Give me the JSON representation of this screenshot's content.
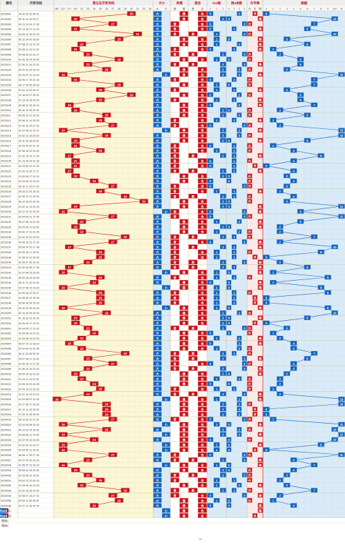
{
  "header": {
    "col_issue": "期号",
    "col_numbers": "开奖号码",
    "sec_pos5": "第五位开奖号码",
    "sec_size": "大小",
    "sec_parity": "奇偶",
    "sec_prime": "质合",
    "sec_mod3": "012路",
    "sec_mod4": "除4余数",
    "sec_trend": "升平降",
    "sec_amp": "振幅"
  },
  "subheaders": {
    "pos5": [
      "05+",
      "12+",
      "17+",
      "20+",
      "22",
      "23",
      "24",
      "25",
      "26",
      "27",
      "28",
      "29",
      "30",
      "31",
      "32",
      "33"
    ],
    "size": [
      "大",
      "小"
    ],
    "parity": [
      "奇",
      "偶"
    ],
    "prime": [
      "质",
      "合"
    ],
    "mod3": [
      "0",
      "1",
      "2"
    ],
    "mod4": [
      "0",
      "1",
      "2",
      "3"
    ],
    "trend": [
      "升",
      "平",
      "降"
    ],
    "amp": [
      "0",
      "1",
      "2",
      "3",
      "4",
      "5",
      "6",
      "7",
      "8",
      "9",
      "10+",
      "11"
    ]
  },
  "footer": {
    "forecast1": "预测1",
    "forecast2": "预测2",
    "page_marker": "7/8"
  },
  "watermark": "www.17500.cn",
  "colors": {
    "yellow_bg": "#fcf7d6",
    "blue_bg": "#d9ebf9",
    "pink_bg": "#fbeaea",
    "red_mark": "#c8121b",
    "blue_mark": "#1565c0",
    "red_line": "#c8121b",
    "blue_line": "#1565c0",
    "grid": "#e3d7ae"
  },
  "chart_data": {
    "type": "table",
    "title": "第五位开奖号码",
    "issues": [
      "2023091",
      "2023092",
      "2023093",
      "2023094",
      "2023095",
      "2023096",
      "2023097",
      "2023098",
      "2023099",
      "2023100",
      "2023101",
      "2023102",
      "2023103",
      "2023104",
      "2023105",
      "2023106",
      "2023107",
      "2023108",
      "2023109",
      "2023110",
      "2023111",
      "2023112",
      "2023113",
      "2023114",
      "2023115",
      "2023116",
      "2023117",
      "2023118",
      "2023119",
      "2023120",
      "2023121",
      "2023122",
      "2023123",
      "2023124",
      "2023125",
      "2023126",
      "2023127",
      "2023128",
      "2023129",
      "2023130",
      "2023131",
      "2023132",
      "2023133",
      "2023134",
      "2023135",
      "2023136",
      "2023137",
      "2023138",
      "2023139",
      "2023140",
      "2023141",
      "2023142",
      "2023143",
      "2023144",
      "2023145",
      "2023146",
      "2023147",
      "2023148",
      "2023149",
      "2023150",
      "2023151",
      "2023152",
      "2024001",
      "2024002",
      "2024003",
      "2024004",
      "2024005",
      "2024006",
      "2024007",
      "2024008",
      "2024009",
      "2024010",
      "2024011",
      "2024012",
      "2024013",
      "2024014",
      "2024015",
      "2024016",
      "2024017",
      "2024018",
      "2024019",
      "2024020",
      "2024021",
      "2024022",
      "2024023",
      "2024024",
      "2024025",
      "2024026",
      "2024027",
      "2024028",
      "2024029",
      "2024030",
      "2024031",
      "2024032",
      "2024033",
      "2024034",
      "2024035",
      "2024036",
      "2024037",
      "2024038"
    ],
    "numbers": [
      "16 20 23 29 30 31",
      "09 11 12 19 20 27",
      "04 13 14 24 27 30",
      "02 13 16 17 21 33",
      "04 05 13 18 31 33",
      "05 12 14 20 28 29",
      "07 08 12 13 22 33",
      "02 05 11 14 21 24",
      "04 08 09 10 23 27",
      "02 06 15 24 28 30",
      "07 09 11 19 23 29",
      "09 20 22 24 26 33",
      "02 04 07 12 14 19",
      "04 05 17 19 21 30",
      "08 17 19 26 28 33",
      "01 02 13 22 25 27",
      "10 18 20 27 30 31",
      "01 13 16 18 25 30",
      "03 08 10 15 18 24",
      "05 10 13 16 20 32",
      "06 09 10 21 26 33",
      "03 08 10 19 25 33",
      "01 02 13 15 27 32",
      "02 07 08 13 14 27",
      "01 02 14 15 26 33",
      "03 11 16 18 20 30",
      "02 03 16 20 21 32",
      "01 08 18 19 25 28",
      "01 02 13 14 17 33",
      "01 13 18 19 21 26",
      "02 03 09 13 21 33",
      "01 02 13 16 17 27",
      "01 02 06 17 20 24",
      "01 04 06 13 24 33",
      "06 10 17 20 27 30",
      "05 15 21 24 25 33",
      "01 06 12 17 29 33",
      "09 10 18 20 32 33",
      "01 02 12 13 20 23",
      "02 07 10 11 15 18",
      "03 04 09 21 27 30",
      "06 07 08 13 22 33",
      "02 03 05 11 20 28",
      "04 06 17 19 22 25",
      "01 02 19 22 29 30",
      "03 05 10 21 27 32",
      "05 08 14 15 17 28",
      "02 09 16 17 25 31",
      "01 08 10 12 25 30",
      "02 05 07 16 23 25",
      "01 02 04 05 17 28",
      "01 07 08 15 16 25",
      "05 09 18 23 25 28",
      "08 11 13 19 24 26",
      "02 07 08 14 16 29",
      "02 09 18 22 25 27",
      "01 06 08 14 25 28",
      "05 08 18 24 25 33",
      "02 10 13 15 16 18",
      "02 10 19 25 26 30",
      "01 15 16 19 20 32",
      "03 05 16 17 20 31",
      "02 04 05 17 23 32",
      "03 05 08 19 24 31",
      "01 03 06 19 22 33",
      "05 07 10 13 18 19",
      "02 04 06 13 22 30",
      "06 11 20 28 29 33",
      "04 07 08 17 23 31",
      "01 09 16 17 27 32",
      "01 06 10 19 23 26",
      "05 09 14 16 20 25",
      "01 04 11 14 22 30",
      "01 08 15 20 24 28",
      "04 09 15 22 25 32",
      "01 07 14 19 23 31",
      "01 03 05 07 10 15",
      "02 07 08 17 26 33",
      "02 12 14 15 26 32",
      "07 09 13 18 26 30",
      "08 14 20 22 27 31",
      "01 04 06 08 16 24",
      "04 14 23 24 26 30",
      "03 06 08 11 14 28",
      "01 07 09 13 24 30",
      "01 02 05 12 16 27",
      "03 04 06 11 16 32",
      "06 08 17 25 27 30",
      "02 07 09 14 23 30",
      "01 05 07 13 16 29",
      "05 08 15 18 20 30",
      "02 03 05 21 23 31",
      "03 09 12 20 25 33",
      "01 03 06 16 22 25",
      "01 02 16 26 29 30",
      "02 06 07 18 27 31",
      "03 05 11 26 28 32",
      "01 07 13 18 24 29"
    ],
    "pos5": [
      30,
      20,
      27,
      21,
      31,
      28,
      22,
      21,
      23,
      28,
      23,
      26,
      14,
      21,
      28,
      25,
      30,
      25,
      18,
      20,
      26,
      25,
      27,
      14,
      26,
      20,
      21,
      25,
      17,
      21,
      21,
      17,
      20,
      24,
      27,
      25,
      29,
      32,
      20,
      15,
      27,
      22,
      20,
      22,
      29,
      27,
      17,
      25,
      25,
      23,
      17,
      16,
      25,
      24,
      16,
      25,
      25,
      25,
      16,
      26,
      20,
      20,
      23,
      24,
      22,
      18,
      22,
      29,
      23,
      27,
      23,
      20,
      22,
      24,
      25,
      23,
      10,
      26,
      26,
      26,
      27,
      16,
      26,
      14,
      24,
      16,
      16,
      27,
      23,
      16,
      20,
      23,
      25,
      22,
      29,
      27,
      28,
      24
    ],
    "amplitude": [
      0,
      10,
      7,
      6,
      10,
      3,
      6,
      1,
      2,
      5,
      5,
      3,
      12,
      7,
      7,
      3,
      5,
      5,
      7,
      2,
      6,
      1,
      2,
      13,
      12,
      6,
      1,
      4,
      8,
      4,
      0,
      4,
      3,
      4,
      3,
      2,
      4,
      3,
      12,
      5,
      12,
      5,
      2,
      2,
      7,
      2,
      10,
      8,
      0,
      2,
      6,
      1,
      9,
      1,
      8,
      9,
      0,
      0,
      9,
      10,
      6,
      0,
      3,
      1,
      2,
      4,
      4,
      7,
      6,
      4,
      4,
      3,
      2,
      2,
      1,
      2,
      13,
      16,
      0,
      0,
      1,
      11,
      10,
      12,
      10,
      8,
      0,
      11,
      4,
      7,
      4,
      3,
      2,
      3,
      7,
      2,
      1,
      4
    ],
    "note": "Per-issue 5th-position numbers (2023091–2024038) with size/parity/prime/mod3/mod4/trend/amplitude indicators derived from them."
  }
}
